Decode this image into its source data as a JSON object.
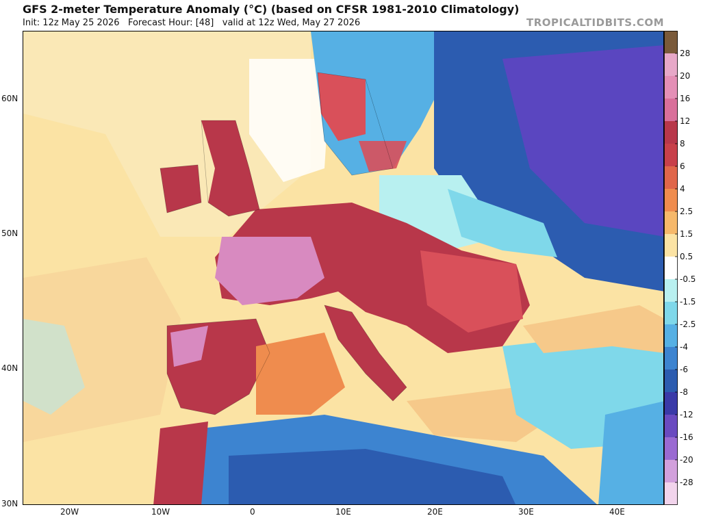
{
  "header": {
    "title": "GFS 2-meter Temperature Anomaly (°C) (based on CFSR 1981-2010 Climatology)",
    "subtitle": "Init: 12z May 25 2026   Forecast Hour: [48]   valid at 12z Wed, May 27 2026",
    "brand": "TROPICALTIDBITS.COM"
  },
  "axes": {
    "lat_labels": [
      "60N",
      "50N",
      "40N",
      "30N"
    ],
    "lon_labels": [
      "20W",
      "10W",
      "0",
      "10E",
      "20E",
      "30E",
      "40E"
    ]
  },
  "colorbar": {
    "labels": [
      "28",
      "20",
      "16",
      "12",
      "8",
      "6",
      "4",
      "2.5",
      "1.5",
      "0.5",
      "-0.5",
      "-1.5",
      "-2.5",
      "-4",
      "-6",
      "-8",
      "-12",
      "-16",
      "-20",
      "-28"
    ],
    "colors": [
      "#7a5a3a",
      "#e7a8c8",
      "#e48fb6",
      "#d96f9a",
      "#b8374a",
      "#c8404a",
      "#e0664a",
      "#ef8c4e",
      "#f6b86a",
      "#fbe3a4",
      "#ffffff",
      "#b8f0f0",
      "#7fd8ea",
      "#56b0e4",
      "#3d84d0",
      "#2c5cb0",
      "#3a3aa8",
      "#6a4ac0",
      "#9a6ad2",
      "#d2a0dc",
      "#f2d4ec"
    ]
  },
  "colors": {
    "ocean_warm": "#fbe3a4",
    "ocean_mild": "#f6c98a",
    "very_warm": "#b8374a",
    "warm": "#d9505a",
    "pink_hot": "#d88ac0",
    "cool": "#7fd8ea",
    "cold": "#2c5cb0",
    "very_cold": "#5a46c0",
    "orange": "#ef8c4e"
  }
}
